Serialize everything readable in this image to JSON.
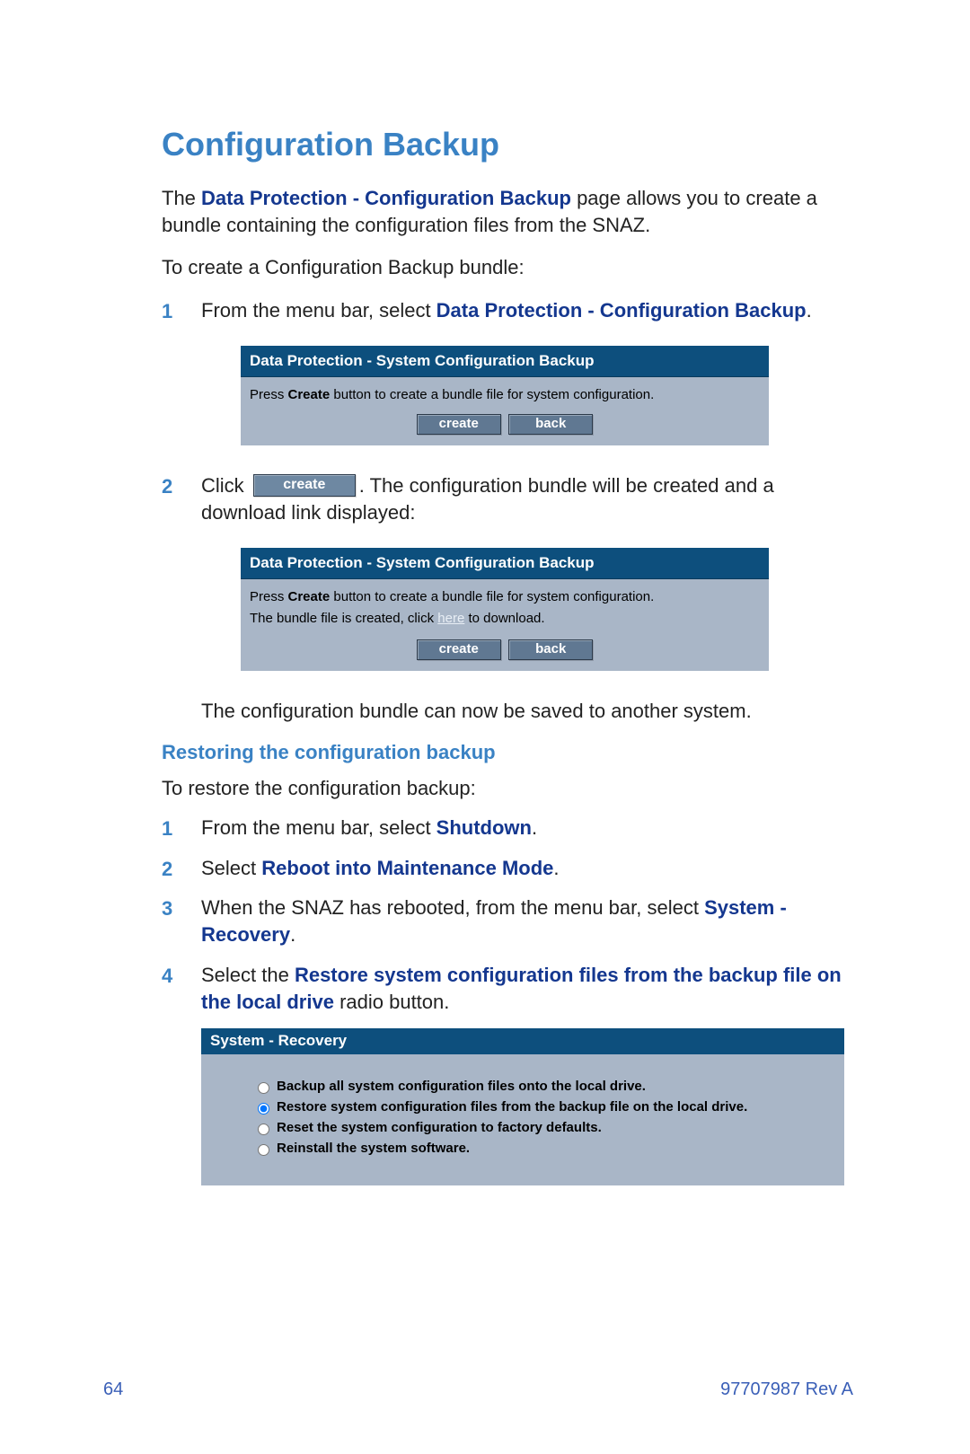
{
  "colors": {
    "heading": "#3a82c4",
    "accent_text": "#14378f",
    "panel_header_bg": "#0d4f7d",
    "panel_header_fg": "#ffffff",
    "panel_body_bg": "#a9b6c7",
    "button_bg": "#607892",
    "button_fg": "#ffffff",
    "button_border": "#2c3a4a",
    "link_fg": "#e8eef5",
    "footer_fg": "#3a5fb7"
  },
  "typography": {
    "title_size_pt": 27,
    "body_size_pt": 16.5,
    "panel_font": "Tahoma",
    "body_font": "Segoe UI / Myriad Pro"
  },
  "title": "Configuration Backup",
  "intro": {
    "pre": "The ",
    "bold": "Data Protection - Configuration Backup",
    "post": " page allows you to create a bundle containing the configuration files from the SNAZ."
  },
  "create_lead": "To create a Configuration Backup bundle:",
  "create_steps": {
    "s1": {
      "pre": "From the menu bar, select ",
      "bold": "Data Protection - Configuration Backup",
      "post": "."
    },
    "s2": {
      "pre": "Click ",
      "btn": "create",
      "post": ". The configuration bundle will be created and a download link displayed:"
    }
  },
  "panel1": {
    "header": "Data Protection - System Configuration Backup",
    "instr_pre": "Press ",
    "instr_bold": "Create",
    "instr_post": " button to create a bundle file for system configuration.",
    "btn_create": "create",
    "btn_back": "back"
  },
  "panel2": {
    "header": "Data Protection - System Configuration Backup",
    "instr_pre": "Press ",
    "instr_bold": "Create",
    "instr_post": " button to create a bundle file for system configuration.",
    "dl_pre": "The bundle file is created, click ",
    "dl_link": "here",
    "dl_post": " to download.",
    "btn_create": "create",
    "btn_back": "back"
  },
  "after_panel2": "The configuration bundle can now be saved to another system.",
  "restore_heading": "Restoring the configuration backup",
  "restore_lead": "To restore the configuration backup:",
  "restore_steps": {
    "s1": {
      "pre": "From the menu bar, select ",
      "bold": "Shutdown",
      "post": "."
    },
    "s2": {
      "pre": "Select ",
      "bold": "Reboot into Maintenance Mode",
      "post": "."
    },
    "s3": {
      "pre": "When the SNAZ has rebooted, from the menu bar, select ",
      "bold": "System - Recovery",
      "post": "."
    },
    "s4": {
      "pre": "Select the ",
      "bold": "Restore system configuration files from the backup file on the local drive",
      "post": " radio button."
    }
  },
  "recovery_panel": {
    "header": "System - Recovery",
    "options": [
      "Backup all system configuration files onto the local drive.",
      "Restore system configuration files from the backup file on the local drive.",
      "Reset the system configuration to factory defaults.",
      "Reinstall the system software."
    ],
    "selected_index": 1
  },
  "footer": {
    "page_num": "64",
    "doc_rev": "97707987 Rev A"
  }
}
